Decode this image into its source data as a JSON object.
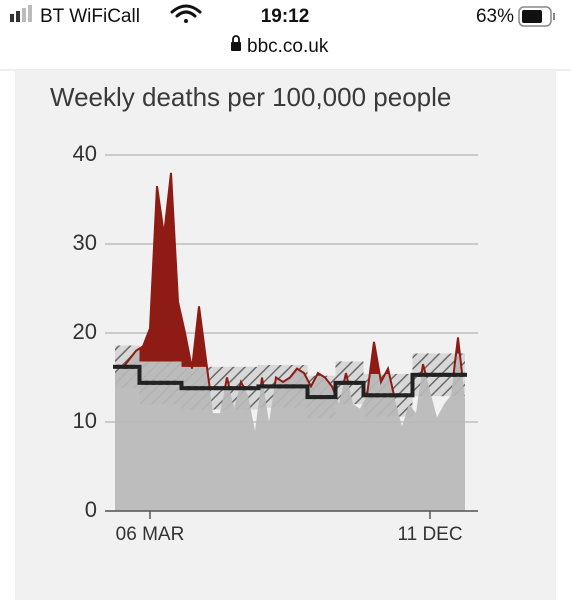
{
  "status_bar": {
    "carrier": "BT WiFiCall",
    "time": "19:12",
    "battery": "63%"
  },
  "url": "bbc.co.uk",
  "chart_data": {
    "type": "area",
    "title": "Weekly deaths per 100,000 people",
    "categories": [
      null,
      null,
      null,
      null,
      null,
      "06 MAR",
      null,
      null,
      null,
      null,
      null,
      null,
      null,
      null,
      null,
      null,
      null,
      null,
      null,
      null,
      null,
      null,
      null,
      null,
      null,
      null,
      null,
      null,
      null,
      null,
      null,
      null,
      null,
      null,
      null,
      null,
      null,
      null,
      null,
      null,
      null,
      null,
      null,
      null,
      null,
      "11 DEC",
      null,
      null,
      null,
      null,
      null
    ],
    "series": [
      {
        "color": "#b9b9b9",
        "excess_color": "#8e1b14",
        "values": [
          15.5,
          16,
          17,
          18,
          18.5,
          20.5,
          36.5,
          31,
          38,
          23.5,
          20,
          16,
          23,
          17,
          11,
          11,
          15,
          11.5,
          14.5,
          13,
          9,
          15,
          10,
          15,
          14.5,
          15,
          16,
          15.5,
          14,
          15.5,
          15,
          14,
          12,
          15.5,
          12,
          11.5,
          13,
          19,
          14.5,
          16,
          12.5,
          9.5,
          12,
          11,
          16.5,
          13.5,
          10.5,
          12,
          13,
          19.5,
          12.5
        ]
      },
      {
        "color": "#222222",
        "values": [
          16.2,
          16.2,
          16.2,
          16.2,
          14.4,
          14.4,
          14.4,
          14.4,
          14.4,
          14.4,
          13.8,
          13.8,
          13.8,
          13.8,
          13.8,
          13.8,
          13.8,
          13.8,
          13.8,
          13.8,
          13.8,
          14,
          14,
          14,
          14,
          14,
          14,
          14,
          12.8,
          12.8,
          12.8,
          12.8,
          14.4,
          14.4,
          14.4,
          14.4,
          13,
          13,
          13,
          13,
          13,
          13,
          13,
          15.3,
          15.3,
          15.3,
          15.3,
          15.3,
          15.3,
          15.3,
          15.3
        ]
      }
    ],
    "band": {
      "low": [
        13.8,
        13.8,
        13.8,
        13.8,
        12,
        12,
        12,
        12,
        12,
        12,
        11.4,
        11.4,
        11.4,
        11.4,
        11.4,
        11.4,
        11.4,
        11.4,
        11.4,
        11.4,
        11.4,
        11.6,
        11.6,
        11.6,
        11.6,
        11.6,
        11.6,
        11.6,
        10.4,
        10.4,
        10.4,
        10.4,
        12,
        12,
        12,
        12,
        10.6,
        10.6,
        10.6,
        10.6,
        10.6,
        10.6,
        10.6,
        12.9,
        12.9,
        12.9,
        12.9,
        12.9,
        12.9,
        12.9,
        12.9
      ],
      "high": [
        18.6,
        18.6,
        18.6,
        18.6,
        16.8,
        16.8,
        16.8,
        16.8,
        16.8,
        16.8,
        16.2,
        16.2,
        16.2,
        16.2,
        16.2,
        16.2,
        16.2,
        16.2,
        16.2,
        16.2,
        16.2,
        16.4,
        16.4,
        16.4,
        16.4,
        16.4,
        16.4,
        16.4,
        15.2,
        15.2,
        15.2,
        15.2,
        16.8,
        16.8,
        16.8,
        16.8,
        15.4,
        15.4,
        15.4,
        15.4,
        15.4,
        15.4,
        15.4,
        17.7,
        17.7,
        17.7,
        17.7,
        17.7,
        17.7,
        17.7,
        17.7
      ]
    },
    "ylim": [
      0,
      40
    ],
    "yticks": [
      0,
      10,
      20,
      30,
      40
    ],
    "grid": true
  }
}
